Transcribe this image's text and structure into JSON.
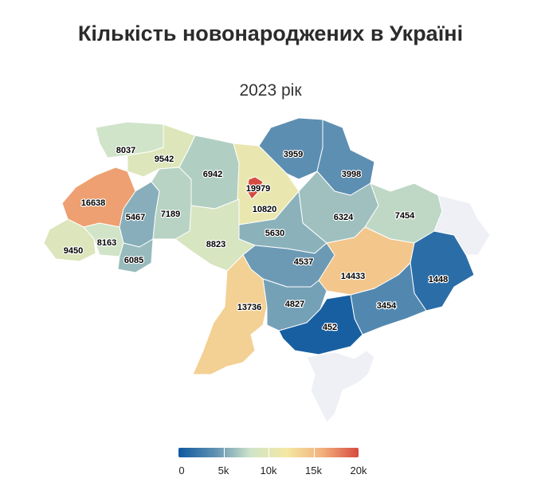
{
  "title": "Кількість новонароджених в Україні",
  "subtitle": "2023 рік",
  "legend": {
    "ticks": [
      "0",
      "5k",
      "10k",
      "15k",
      "20k"
    ],
    "colors": [
      "#0f59a0",
      "#5d8fb2",
      "#cfe4c8",
      "#f4e8a4",
      "#f2b07c",
      "#d64a3f"
    ],
    "no_data_color": "#eef0f6"
  },
  "regions": [
    {
      "id": "volyn",
      "value": 8037
    },
    {
      "id": "rivne",
      "value": 9542
    },
    {
      "id": "lviv",
      "value": 16638
    },
    {
      "id": "ternopil",
      "value": 5467
    },
    {
      "id": "khmelnytskyi",
      "value": 7189
    },
    {
      "id": "zhytomyr",
      "value": 6942
    },
    {
      "id": "kyiv-oblast",
      "value": 10820
    },
    {
      "id": "kyiv-city",
      "value": 19979
    },
    {
      "id": "chernihiv",
      "value": 3959
    },
    {
      "id": "sumy",
      "value": 3998
    },
    {
      "id": "poltava",
      "value": 6324
    },
    {
      "id": "kharkiv",
      "value": 7454
    },
    {
      "id": "cherkasy",
      "value": 5630
    },
    {
      "id": "vinnytsia",
      "value": 8823
    },
    {
      "id": "zakarpattia",
      "value": 9450
    },
    {
      "id": "ivano-frankivsk",
      "value": 8163
    },
    {
      "id": "chernivtsi",
      "value": 6085
    },
    {
      "id": "kirovohrad",
      "value": 4537
    },
    {
      "id": "dnipropetrovsk",
      "value": 14433
    },
    {
      "id": "donetsk",
      "value": 1448
    },
    {
      "id": "odesa",
      "value": 13736
    },
    {
      "id": "mykolaiv",
      "value": 4827
    },
    {
      "id": "zaporizhzhia",
      "value": 3454
    },
    {
      "id": "kherson",
      "value": 452
    },
    {
      "id": "luhansk",
      "value": null
    },
    {
      "id": "crimea",
      "value": null
    }
  ]
}
